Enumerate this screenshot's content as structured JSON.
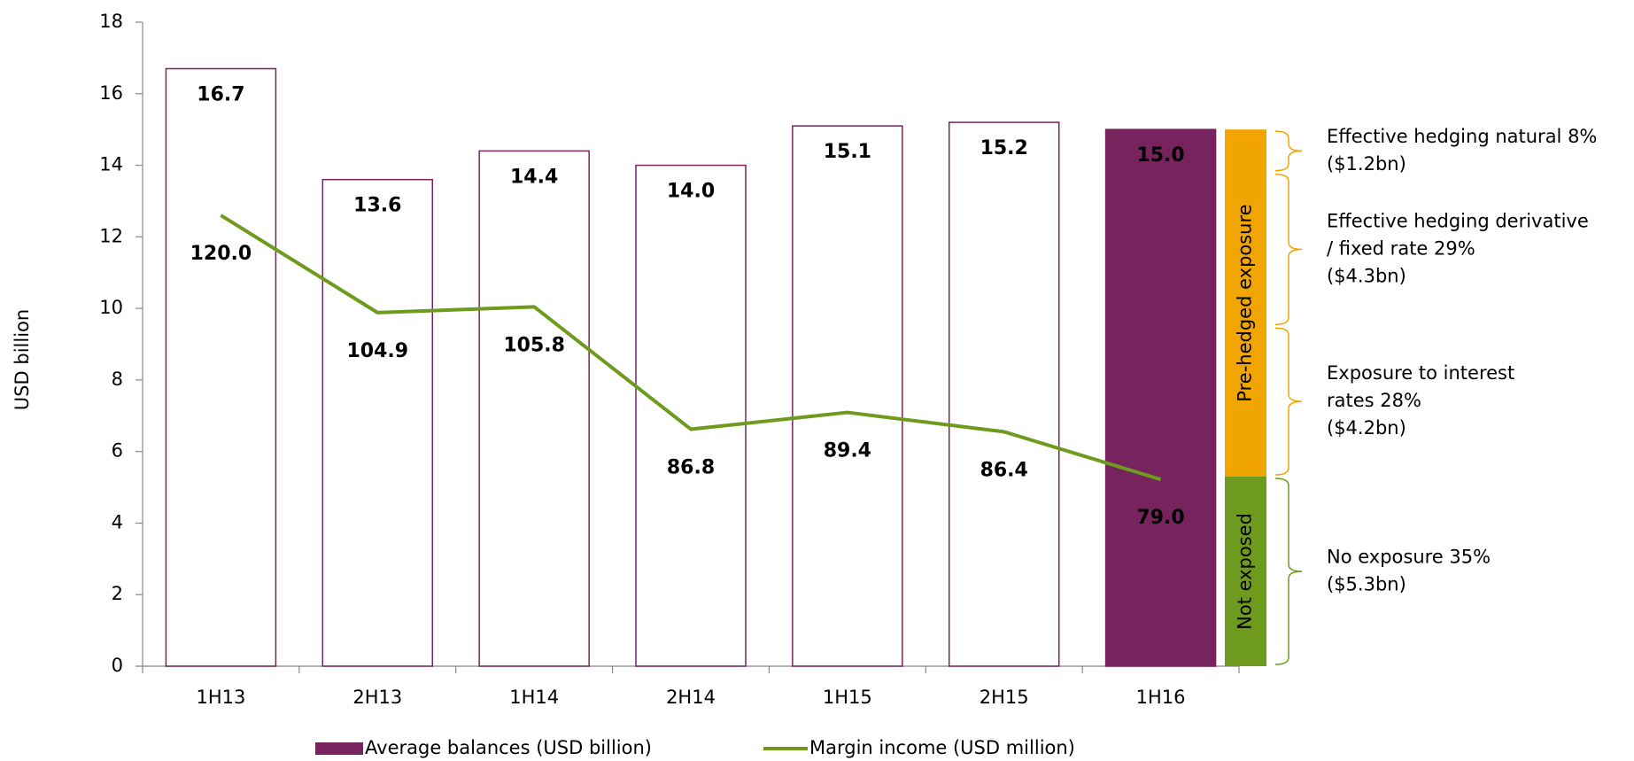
{
  "chart_data": {
    "type": "bar",
    "y_axis_label": "USD billion",
    "categories": [
      "1H13",
      "2H13",
      "1H14",
      "2H14",
      "1H15",
      "2H15",
      "1H16"
    ],
    "ylim": [
      0,
      18
    ],
    "yticks": [
      0,
      2,
      4,
      6,
      8,
      10,
      12,
      14,
      16,
      18
    ],
    "y2lim": [
      50,
      150
    ],
    "series": [
      {
        "name": "Average balances (USD billion)",
        "type": "bar",
        "color": "#76235e",
        "fills": [
          "none",
          "none",
          "none",
          "none",
          "none",
          "none",
          "#76235e"
        ],
        "label_colors": [
          "#000000",
          "#000000",
          "#000000",
          "#000000",
          "#000000",
          "#000000",
          "#ffffff"
        ],
        "values": [
          16.7,
          13.6,
          14.4,
          14.0,
          15.1,
          15.2,
          15.0
        ],
        "value_labels": [
          "16.7",
          "13.6",
          "14.4",
          "14.0",
          "15.1",
          "15.2",
          "15.0"
        ]
      },
      {
        "name": "Margin income (USD million)",
        "type": "line",
        "axis": "y2",
        "color": "#6e9a1e",
        "label_color": "#707070",
        "values": [
          120.0,
          104.9,
          105.8,
          86.8,
          89.4,
          86.4,
          79.0
        ],
        "value_labels": [
          "120.0",
          "104.9",
          "105.8",
          "86.8",
          "89.4",
          "86.4",
          "79.0"
        ]
      }
    ],
    "exposure": {
      "groups": [
        {
          "label": "Not exposed",
          "color": "#6e9a1e",
          "value": 5.3
        },
        {
          "label": "Pre-hedged exposure",
          "color": "#f0a500",
          "value": 9.7
        }
      ],
      "annotations": [
        {
          "lines": [
            "No exposure 35%",
            "($5.3bn)"
          ],
          "value": 5.3,
          "color": "#6e9a1e"
        },
        {
          "lines": [
            "Exposure to interest",
            "rates 28%",
            "($4.2bn)"
          ],
          "value": 4.2,
          "color": "#f0a500"
        },
        {
          "lines": [
            "Effective hedging derivative",
            "/ fixed rate 29%",
            "($4.3bn)"
          ],
          "value": 4.3,
          "color": "#f0a500"
        },
        {
          "lines": [
            "Effective hedging natural 8%",
            "($1.2bn)"
          ],
          "value": 1.2,
          "color": "#f0a500"
        }
      ]
    }
  }
}
